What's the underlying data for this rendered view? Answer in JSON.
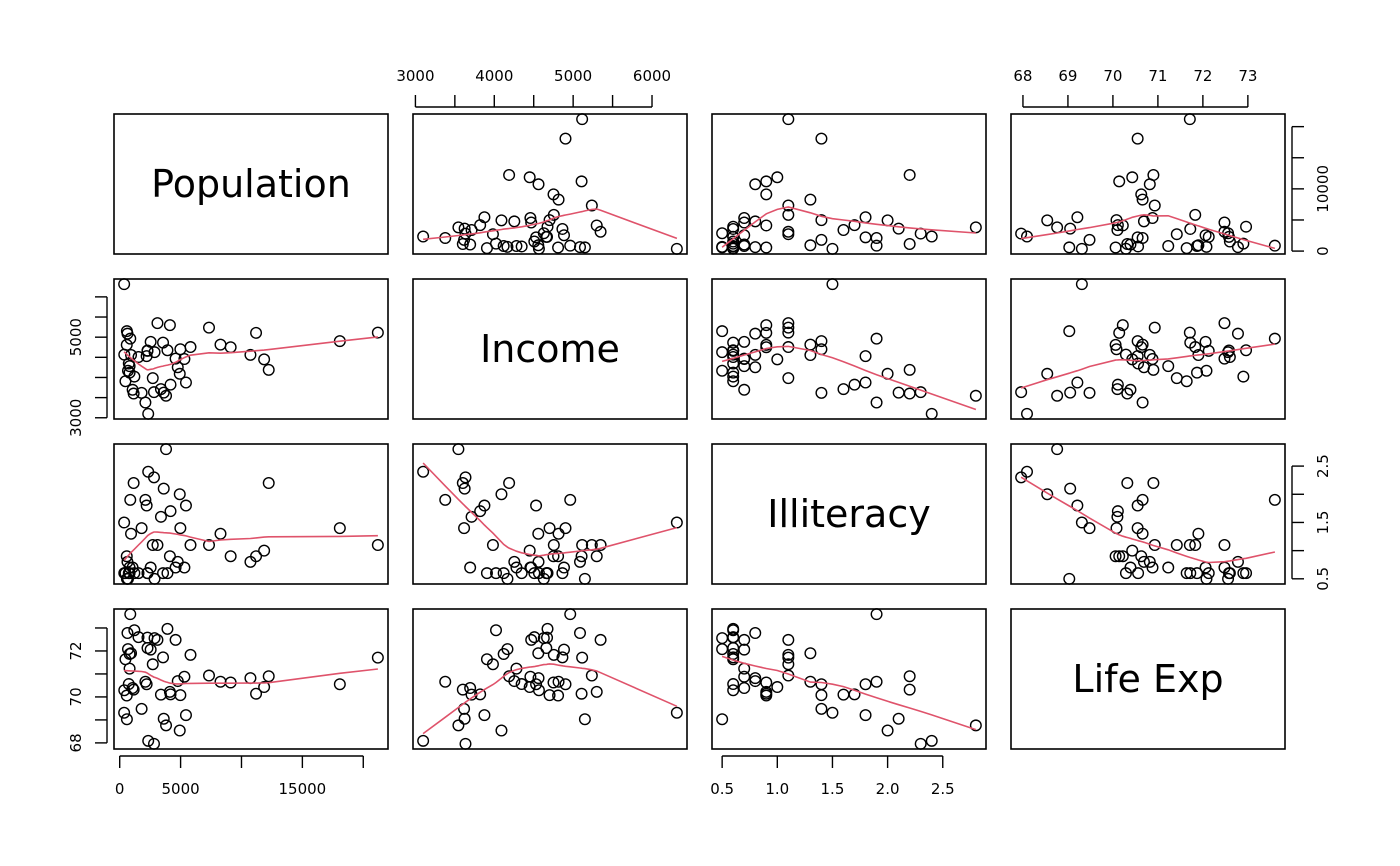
{
  "chart_data": {
    "type": "scatter",
    "kind": "scatterplot-matrix",
    "smoother_color": "#DF536B",
    "point_color": "#000000",
    "variables": [
      "Population",
      "Income",
      "Illiteracy",
      "Life Exp"
    ],
    "ranges": {
      "Population": [
        365,
        21198
      ],
      "Income": [
        3098,
        6315
      ],
      "Illiteracy": [
        0.5,
        2.8
      ],
      "Life Exp": [
        67.96,
        73.6
      ]
    },
    "ticks": {
      "Population": {
        "values": [
          0,
          5000,
          10000,
          15000,
          20000
        ],
        "labels": [
          "0",
          "5000",
          "",
          "15000",
          ""
        ],
        "right_labels": [
          "0",
          "",
          "10000",
          "",
          ""
        ]
      },
      "Income": {
        "values": [
          3000,
          3500,
          4000,
          4500,
          5000,
          5500,
          6000
        ],
        "labels": [
          "3000",
          "",
          "4000",
          "",
          "5000",
          "",
          "6000"
        ],
        "left_labels": [
          "3000",
          "",
          "",
          "",
          "5000",
          "",
          ""
        ]
      },
      "Illiteracy": {
        "values": [
          0.5,
          1.0,
          1.5,
          2.0,
          2.5
        ],
        "labels": [
          "0.5",
          "1.0",
          "1.5",
          "2.0",
          "2.5"
        ],
        "right_labels": [
          "0.5",
          "",
          "1.5",
          "",
          "2.5"
        ]
      },
      "Life Exp": {
        "values": [
          68,
          69,
          70,
          71,
          72,
          73
        ],
        "labels": [
          "68",
          "69",
          "70",
          "71",
          "72",
          "73"
        ],
        "left_labels": [
          "68",
          "",
          "70",
          "",
          "72",
          ""
        ]
      }
    },
    "observations": {
      "Population": [
        3615,
        365,
        2212,
        2110,
        21198,
        2541,
        3100,
        579,
        8277,
        4931,
        868,
        813,
        11197,
        5313,
        2861,
        2280,
        3387,
        3806,
        1058,
        4122,
        5814,
        9111,
        3921,
        2341,
        4767,
        746,
        1544,
        590,
        812,
        7333,
        1144,
        18076,
        5441,
        637,
        10735,
        2715,
        2284,
        11860,
        931,
        2816,
        681,
        4173,
        12237,
        1203,
        472,
        4981,
        3559,
        1799,
        4589,
        376
      ],
      "Income": [
        3624,
        6315,
        4530,
        3378,
        5114,
        4884,
        5348,
        4809,
        4815,
        4091,
        4963,
        4119,
        5107,
        4458,
        4628,
        4669,
        3712,
        3545,
        3694,
        5299,
        4755,
        4751,
        4675,
        3098,
        4254,
        4347,
        4508,
        5149,
        4281,
        5237,
        3601,
        4903,
        3875,
        5087,
        4561,
        3983,
        4660,
        4449,
        4558,
        3635,
        4167,
        3821,
        4188,
        4022,
        3907,
        4701,
        4864,
        3617,
        4468,
        4566
      ],
      "Illiteracy": [
        2.1,
        1.5,
        1.8,
        1.9,
        1.1,
        0.7,
        1.1,
        0.9,
        1.3,
        2.0,
        1.9,
        0.6,
        0.9,
        0.7,
        0.5,
        0.6,
        1.6,
        2.8,
        0.7,
        0.9,
        1.1,
        0.9,
        0.6,
        2.4,
        0.8,
        0.6,
        0.6,
        0.5,
        0.7,
        1.1,
        2.2,
        1.4,
        1.8,
        0.8,
        0.8,
        1.1,
        0.6,
        1.0,
        1.3,
        2.3,
        0.5,
        1.7,
        2.2,
        0.6,
        0.6,
        1.4,
        0.6,
        1.4,
        0.7,
        0.6
      ],
      "Life Exp": [
        69.05,
        69.31,
        70.55,
        70.66,
        71.71,
        72.06,
        72.48,
        70.06,
        70.66,
        68.54,
        73.6,
        71.87,
        70.14,
        70.88,
        72.56,
        72.58,
        70.1,
        68.76,
        70.39,
        70.22,
        71.83,
        70.63,
        72.96,
        68.09,
        70.69,
        70.56,
        72.6,
        69.03,
        71.23,
        70.93,
        70.32,
        70.55,
        69.21,
        72.78,
        70.82,
        71.42,
        72.13,
        70.43,
        71.9,
        67.96,
        72.08,
        70.11,
        70.9,
        72.9,
        71.64,
        70.08,
        71.72,
        69.48,
        72.48,
        70.29
      ]
    }
  }
}
